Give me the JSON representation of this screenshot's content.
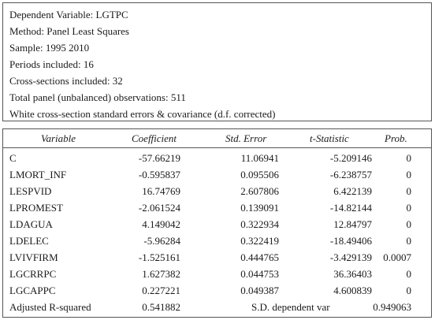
{
  "header": {
    "lines": [
      "Dependent Variable: LGTPC",
      "Method: Panel Least Squares",
      "Sample: 1995 2010",
      "Periods included: 16",
      "Cross-sections included: 32",
      "Total panel (unbalanced) observations: 511",
      "White cross-section standard errors & covariance (d.f. corrected)"
    ]
  },
  "table": {
    "columns": [
      "Variable",
      "Coefficient",
      "Std. Error",
      "t-Statistic",
      "Prob."
    ],
    "rows": [
      {
        "variable": "C",
        "coefficient": "-57.66219",
        "std_error": "11.06941",
        "t_statistic": "-5.209146",
        "prob": "0"
      },
      {
        "variable": "LMORT_INF",
        "coefficient": "-0.595837",
        "std_error": "0.095506",
        "t_statistic": "-6.238757",
        "prob": "0"
      },
      {
        "variable": "LESPVID",
        "coefficient": "16.74769",
        "std_error": "2.607806",
        "t_statistic": "6.422139",
        "prob": "0"
      },
      {
        "variable": "LPROMEST",
        "coefficient": "-2.061524",
        "std_error": "0.139091",
        "t_statistic": "-14.82144",
        "prob": "0"
      },
      {
        "variable": "LDAGUA",
        "coefficient": "4.149042",
        "std_error": "0.322934",
        "t_statistic": "12.84797",
        "prob": "0"
      },
      {
        "variable": "LDELEC",
        "coefficient": "-5.96284",
        "std_error": "0.322419",
        "t_statistic": "-18.49406",
        "prob": "0"
      },
      {
        "variable": "LVIVFIRM",
        "coefficient": "-1.525161",
        "std_error": "0.444765",
        "t_statistic": "-3.429139",
        "prob": "0.0007"
      },
      {
        "variable": "LGCRRPC",
        "coefficient": "1.627382",
        "std_error": "0.044753",
        "t_statistic": "36.36403",
        "prob": "0"
      },
      {
        "variable": "LGCAPPC",
        "coefficient": "0.227221",
        "std_error": "0.049387",
        "t_statistic": "4.600839",
        "prob": "0"
      }
    ],
    "summary": {
      "label1": "Adjusted R-squared",
      "value1": "0.541882",
      "label2": "S.D. dependent var",
      "value2": "0.949063"
    }
  }
}
